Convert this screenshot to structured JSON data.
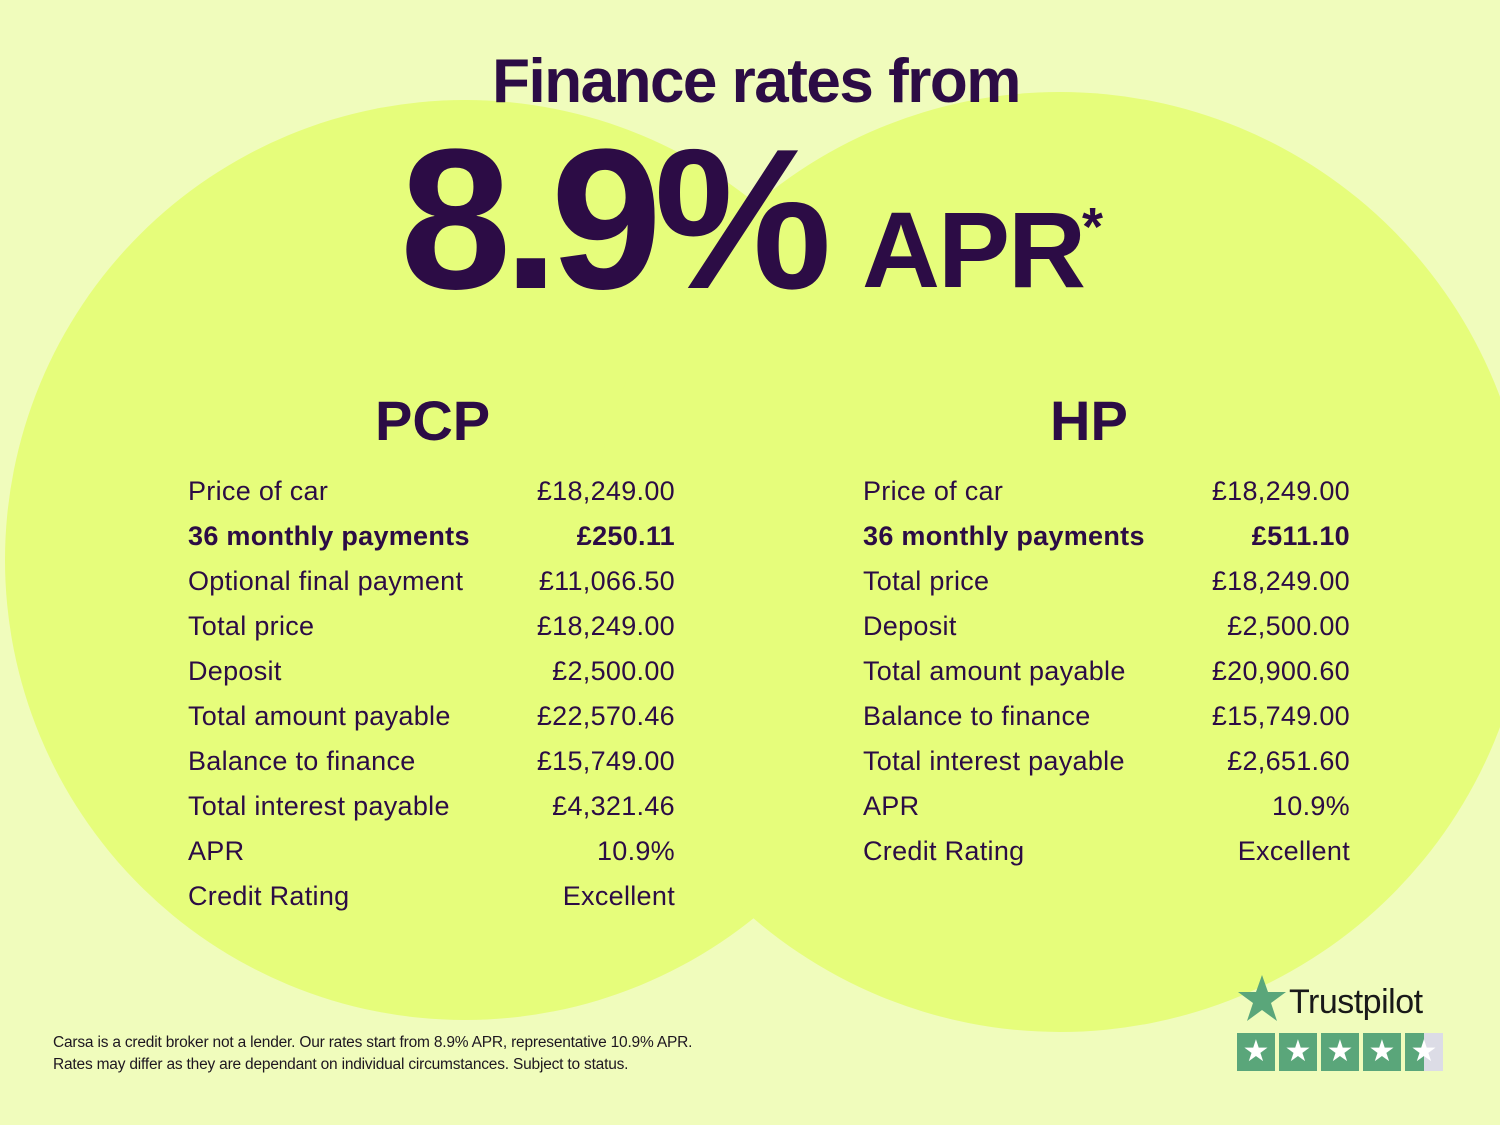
{
  "header": {
    "title": "Finance rates from",
    "rate": "8.9%",
    "apr_label": "APR",
    "asterisk": "*"
  },
  "pcp": {
    "heading": "PCP",
    "rows": [
      {
        "label": "Price of car",
        "value": "£18,249.00",
        "bold": false
      },
      {
        "label": "36 monthly payments",
        "value": "£250.11",
        "bold": true
      },
      {
        "label": "Optional final payment",
        "value": "£11,066.50",
        "bold": false
      },
      {
        "label": "Total price",
        "value": "£18,249.00",
        "bold": false
      },
      {
        "label": "Deposit",
        "value": "£2,500.00",
        "bold": false
      },
      {
        "label": "Total amount payable",
        "value": "£22,570.46",
        "bold": false
      },
      {
        "label": "Balance to finance",
        "value": "£15,749.00",
        "bold": false
      },
      {
        "label": "Total interest payable",
        "value": "£4,321.46",
        "bold": false
      },
      {
        "label": "APR",
        "value": "10.9%",
        "bold": false
      },
      {
        "label": "Credit Rating",
        "value": "Excellent",
        "bold": false
      }
    ]
  },
  "hp": {
    "heading": "HP",
    "rows": [
      {
        "label": "Price of car",
        "value": "£18,249.00",
        "bold": false
      },
      {
        "label": "36 monthly payments",
        "value": "£511.10",
        "bold": true
      },
      {
        "label": "Total price",
        "value": "£18,249.00",
        "bold": false
      },
      {
        "label": "Deposit",
        "value": "£2,500.00",
        "bold": false
      },
      {
        "label": "Total amount payable",
        "value": "£20,900.60",
        "bold": false
      },
      {
        "label": "Balance to finance",
        "value": "£15,749.00",
        "bold": false
      },
      {
        "label": "Total interest payable",
        "value": "£2,651.60",
        "bold": false
      },
      {
        "label": "APR",
        "value": "10.9%",
        "bold": false
      },
      {
        "label": "Credit Rating",
        "value": "Excellent",
        "bold": false
      }
    ]
  },
  "footer": {
    "disclaimer_line1": "Carsa is a credit broker not a lender. Our rates start from 8.9% APR, representative 10.9% APR.",
    "disclaimer_line2": "Rates may differ as they are dependant on individual circumstances. Subject to status."
  },
  "trustpilot": {
    "name": "Trustpilot",
    "rating": 4.5,
    "max_rating": 5,
    "icon": "star-icon",
    "color": "#5aa67a"
  },
  "colors": {
    "background": "#f0fcbc",
    "circle": "#e6fd7b",
    "text": "#2c0c45"
  }
}
